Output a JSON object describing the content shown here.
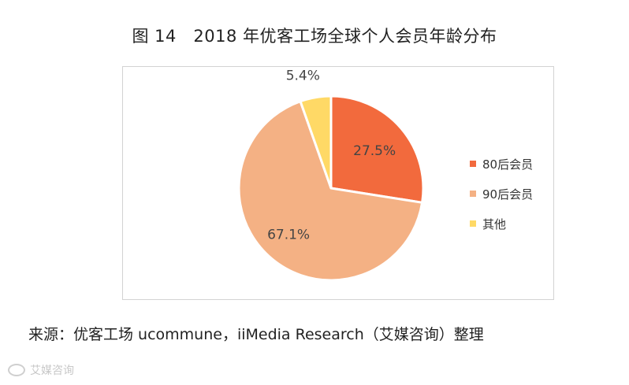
{
  "title": "图 14　2018 年优客工场全球个人会员年龄分布",
  "source": "来源：优客工场 ucommune，iiMedia Research（艾媒咨询）整理",
  "watermark": "艾媒咨询",
  "chart_data": {
    "type": "pie",
    "title": "图 14　2018 年优客工场全球个人会员年龄分布",
    "categories": [
      "80后会员",
      "90后会员",
      "其他"
    ],
    "values": [
      27.5,
      67.1,
      5.4
    ],
    "labels": [
      "27.5%",
      "67.1%",
      "5.4%"
    ],
    "colors": [
      "#f26a3d",
      "#f4b184",
      "#ffd966"
    ],
    "legend": "right",
    "start_angle_deg": 0,
    "direction": "clockwise"
  }
}
